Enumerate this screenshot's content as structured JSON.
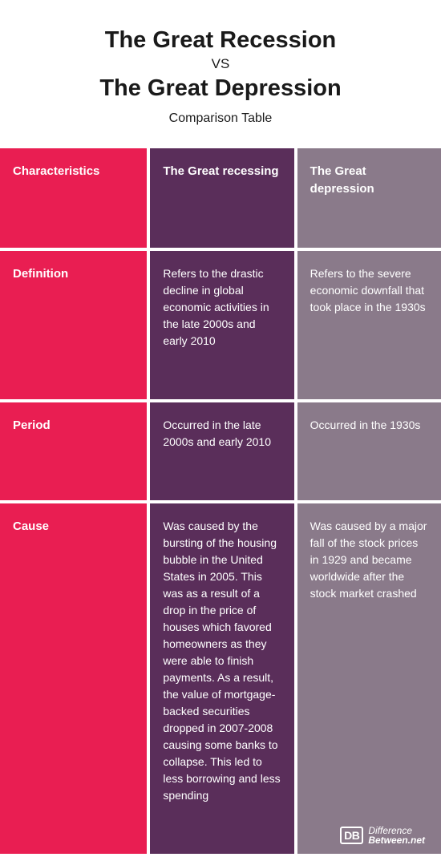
{
  "colors": {
    "col1": "#e91e52",
    "col2": "#5a2e5a",
    "col3": "#8a7a8a",
    "text": "#ffffff",
    "title": "#1a1a1a",
    "background": "#ffffff"
  },
  "header": {
    "title1": "The Great Recession",
    "vs": "VS",
    "title2": "The Great Depression",
    "subtitle": "Comparison Table"
  },
  "table": {
    "columns": [
      "Characteristics",
      "The Great recessing",
      "The Great depression"
    ],
    "rows": [
      {
        "label": "Definition",
        "col2": "Refers to the drastic decline in global economic activities in the late 2000s and early 2010",
        "col3": "Refers to the severe economic downfall that took place in the 1930s"
      },
      {
        "label": "Period",
        "col2": "Occurred in the late 2000s and early 2010",
        "col3": "Occurred in the 1930s"
      },
      {
        "label": "Cause",
        "col2": "Was caused by the bursting of the housing bubble in the United States in 2005. This was as a result of a drop in the price of houses which favored homeowners as they were able to finish payments. As a result, the value of mortgage-backed securities dropped in 2007-2008 causing some banks to collapse. This led to less borrowing and less spending",
        "col3": "Was caused by a major fall of the stock prices in 1929 and became worldwide after the stock market crashed"
      }
    ]
  },
  "footer": {
    "logo": "DB",
    "line1": "Difference",
    "line2": "Between.net"
  }
}
